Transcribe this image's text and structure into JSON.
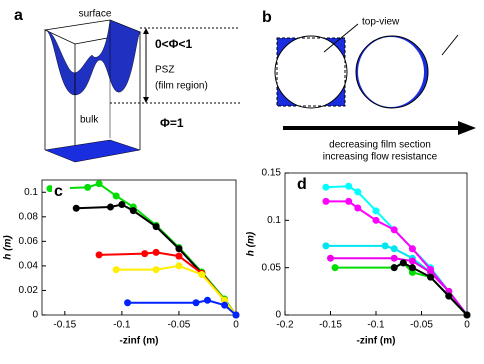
{
  "figure": {
    "a": {
      "label": "a",
      "surface": "surface",
      "range": "0<Φ<1",
      "psz": "PSZ",
      "film": "(film region)",
      "bulk": "bulk",
      "bulk_phi": "Φ=1"
    },
    "b": {
      "label": "b",
      "top_view": "top-view",
      "line1": "decreasing film section",
      "line2": "increasing flow resistance"
    }
  },
  "chart_data": [
    {
      "type": "line",
      "panel": "c",
      "x_label": "-zinf (m)",
      "y_label": "h (m)",
      "xlim": [
        -0.17,
        0
      ],
      "xticks": [
        -0.15,
        -0.1,
        -0.05,
        0
      ],
      "ylim": [
        0,
        0.11
      ],
      "yticks": [
        0,
        0.02,
        0.04,
        0.06,
        0.08,
        0.1
      ],
      "series": [
        {
          "color": "#00dd00",
          "x": [
            -0.163,
            -0.13,
            -0.12,
            -0.105,
            -0.09,
            -0.07,
            -0.05,
            -0.03,
            -0.01,
            0
          ],
          "values": [
            0.103,
            0.104,
            0.107,
            0.097,
            0.088,
            0.073,
            0.055,
            0.035,
            0.013,
            0
          ]
        },
        {
          "color": "#000000",
          "x": [
            -0.14,
            -0.11,
            -0.1,
            -0.09,
            -0.07,
            -0.05,
            -0.03,
            -0.01,
            0
          ],
          "values": [
            0.087,
            0.088,
            0.09,
            0.085,
            0.072,
            0.054,
            0.034,
            0.012,
            0
          ]
        },
        {
          "color": "#ff0000",
          "x": [
            -0.12,
            -0.08,
            -0.07,
            -0.05,
            -0.03,
            -0.01,
            0
          ],
          "values": [
            0.049,
            0.05,
            0.051,
            0.048,
            0.034,
            0.012,
            0
          ]
        },
        {
          "color": "#ffee00",
          "x": [
            -0.105,
            -0.07,
            -0.05,
            -0.03,
            -0.01,
            0
          ],
          "values": [
            0.037,
            0.037,
            0.04,
            0.033,
            0.012,
            0
          ]
        },
        {
          "color": "#0022ff",
          "x": [
            -0.095,
            -0.035,
            -0.025,
            -0.01,
            0
          ],
          "values": [
            0.01,
            0.01,
            0.012,
            0.008,
            0
          ]
        }
      ]
    },
    {
      "type": "line",
      "panel": "d",
      "x_label": "-zinf (m)",
      "y_label": "h (m)",
      "xlim": [
        -0.2,
        0
      ],
      "xticks": [
        -0.2,
        -0.15,
        -0.1,
        -0.05,
        0
      ],
      "ylim": [
        0,
        0.15
      ],
      "yticks": [
        0,
        0.05,
        0.1,
        0.15
      ],
      "series": [
        {
          "color": "#00ffff",
          "x": [
            -0.155,
            -0.13,
            -0.12,
            -0.1,
            -0.08,
            -0.06,
            -0.04,
            -0.02,
            0
          ],
          "values": [
            0.135,
            0.136,
            0.13,
            0.11,
            0.09,
            0.07,
            0.05,
            0.025,
            0
          ]
        },
        {
          "color": "#ff00ff",
          "x": [
            -0.155,
            -0.13,
            -0.12,
            -0.1,
            -0.08,
            -0.06,
            -0.04,
            -0.02,
            0
          ],
          "values": [
            0.12,
            0.12,
            0.113,
            0.1,
            0.09,
            0.07,
            0.048,
            0.025,
            0
          ]
        },
        {
          "color": "#00e5ee",
          "x": [
            -0.155,
            -0.09,
            -0.08,
            -0.06,
            -0.04,
            -0.02,
            0
          ],
          "values": [
            0.073,
            0.073,
            0.07,
            0.06,
            0.045,
            0.025,
            0
          ]
        },
        {
          "color": "#ee00ee",
          "x": [
            -0.15,
            -0.08,
            -0.06,
            -0.04,
            -0.02,
            0
          ],
          "values": [
            0.06,
            0.06,
            0.057,
            0.045,
            0.025,
            0
          ]
        },
        {
          "color": "#00dd00",
          "x": [
            -0.145,
            -0.08,
            -0.07,
            -0.06,
            -0.04,
            -0.02,
            0
          ],
          "values": [
            0.05,
            0.05,
            0.055,
            0.045,
            0.04,
            0.02,
            0
          ]
        },
        {
          "color": "#000000",
          "x": [
            -0.08,
            -0.07,
            -0.06,
            -0.04,
            -0.02,
            0
          ],
          "values": [
            0.05,
            0.055,
            0.05,
            0.04,
            0.02,
            0
          ]
        }
      ]
    }
  ]
}
